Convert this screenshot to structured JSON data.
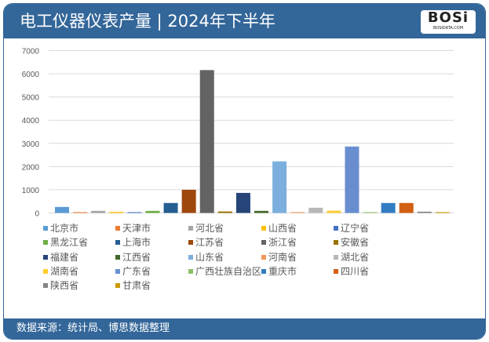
{
  "header": {
    "title": "电工仪器仪表产量 | 2024年下半年",
    "logo_text": "BOSI",
    "logo_subtext": "BOSIDATA.COM"
  },
  "footer": {
    "source": "数据来源：统计局、博思数据整理"
  },
  "chart_data": {
    "type": "bar",
    "title": "电工仪器仪表产量 | 2024年下半年",
    "xlabel": "",
    "ylabel": "",
    "ylim": [
      0,
      7000
    ],
    "yticks": [
      "0",
      "1000",
      "2000",
      "3000",
      "4000",
      "5000",
      "6000",
      "7000"
    ],
    "grid": true,
    "legend_position": "bottom",
    "series": [
      {
        "name": "北京市",
        "value": 260,
        "color": "#5B9BD5"
      },
      {
        "name": "天津市",
        "value": 35,
        "color": "#ED7D31"
      },
      {
        "name": "河北省",
        "value": 90,
        "color": "#A5A5A5"
      },
      {
        "name": "山西省",
        "value": 45,
        "color": "#FFC000"
      },
      {
        "name": "辽宁省",
        "value": 35,
        "color": "#4472C4"
      },
      {
        "name": "黑龙江省",
        "value": 90,
        "color": "#70AD47"
      },
      {
        "name": "上海市",
        "value": 430,
        "color": "#255E91"
      },
      {
        "name": "江苏省",
        "value": 1000,
        "color": "#9E480E"
      },
      {
        "name": "浙江省",
        "value": 6160,
        "color": "#636363"
      },
      {
        "name": "安徽省",
        "value": 65,
        "color": "#997300"
      },
      {
        "name": "福建省",
        "value": 865,
        "color": "#264478"
      },
      {
        "name": "江西省",
        "value": 90,
        "color": "#43682B"
      },
      {
        "name": "山东省",
        "value": 2225,
        "color": "#7CAFDD"
      },
      {
        "name": "河南省",
        "value": 35,
        "color": "#F1975A"
      },
      {
        "name": "湖北省",
        "value": 225,
        "color": "#B7B7B7"
      },
      {
        "name": "湖南省",
        "value": 100,
        "color": "#FFCD33"
      },
      {
        "name": "广东省",
        "value": 2865,
        "color": "#698ED0"
      },
      {
        "name": "广西壮族自治区",
        "value": 35,
        "color": "#8CC168"
      },
      {
        "name": "重庆市",
        "value": 430,
        "color": "#327DC2"
      },
      {
        "name": "四川省",
        "value": 430,
        "color": "#D26012"
      },
      {
        "name": "陕西省",
        "value": 55,
        "color": "#848484"
      },
      {
        "name": "甘肃省",
        "value": 35,
        "color": "#CC9A00"
      }
    ]
  }
}
